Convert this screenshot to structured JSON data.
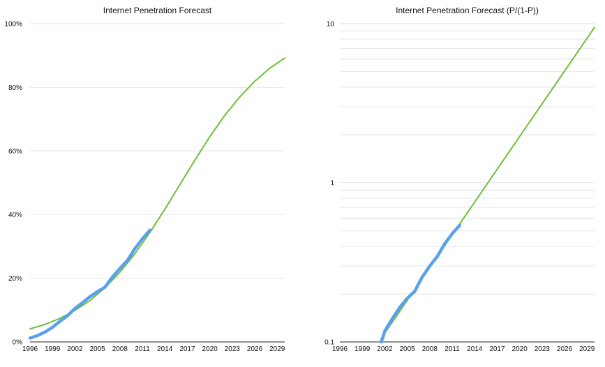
{
  "chart_data": [
    {
      "type": "line",
      "title": "Internet Penetration Forecast",
      "xlabel": "",
      "ylabel": "",
      "x_ticks": [
        "1996",
        "1999",
        "2002",
        "2005",
        "2008",
        "2011",
        "2014",
        "2017",
        "2020",
        "2023",
        "2026",
        "2029"
      ],
      "y_ticks": [
        "0%",
        "20%",
        "40%",
        "60%",
        "80%",
        "100%"
      ],
      "xlim": [
        1996,
        2030
      ],
      "ylim": [
        0,
        100
      ],
      "y_scale": "linear",
      "grid": "horizontal",
      "legend": "none",
      "series": [
        {
          "role": "forecast",
          "color": "#6cbf3a",
          "x": [
            1996,
            1998,
            2000,
            2002,
            2004,
            2006,
            2008,
            2010,
            2012,
            2014,
            2016,
            2018,
            2020,
            2022,
            2024,
            2026,
            2028,
            2030
          ],
          "values": [
            4.1,
            5.5,
            7.4,
            9.9,
            13.0,
            17.0,
            21.9,
            27.7,
            34.4,
            41.7,
            49.4,
            57.1,
            64.5,
            71.2,
            77.0,
            81.9,
            86.0,
            89.2
          ]
        },
        {
          "role": "actual",
          "color": "#5aa0ea",
          "x": [
            1996,
            1997,
            1998,
            1999,
            2000,
            2001,
            2002,
            2003,
            2004,
            2005,
            2006,
            2007,
            2008,
            2009,
            2010,
            2011,
            2012
          ],
          "values": [
            1.2,
            2.0,
            3.1,
            4.6,
            6.5,
            8.2,
            10.5,
            12.3,
            14.2,
            15.8,
            17.2,
            20.4,
            23.1,
            25.6,
            29.3,
            32.4,
            35.1
          ]
        }
      ]
    },
    {
      "type": "line",
      "title": "Internet Penetration Forecast (P/(1-P))",
      "xlabel": "",
      "ylabel": "",
      "x_ticks": [
        "1996",
        "1999",
        "2002",
        "2005",
        "2008",
        "2011",
        "2014",
        "2017",
        "2020",
        "2023",
        "2026",
        "2029"
      ],
      "y_ticks": [
        "0.1",
        "1",
        "10"
      ],
      "xlim": [
        1996,
        2030
      ],
      "ylim": [
        0.1,
        10
      ],
      "y_scale": "log",
      "grid": "horizontal",
      "legend": "none",
      "series": [
        {
          "role": "forecast",
          "color": "#6cbf3a",
          "x": [
            2001.5,
            2030
          ],
          "values": [
            0.105,
            9.48
          ]
        },
        {
          "role": "actual",
          "color": "#5aa0ea",
          "x": [
            2001.5,
            2001.7,
            2002,
            2003,
            2004,
            2005,
            2006,
            2007,
            2008,
            2009,
            2010,
            2011,
            2012
          ],
          "values": [
            0.1,
            0.105,
            0.117,
            0.14,
            0.165,
            0.188,
            0.208,
            0.256,
            0.3,
            0.344,
            0.414,
            0.479,
            0.541
          ]
        }
      ]
    }
  ]
}
